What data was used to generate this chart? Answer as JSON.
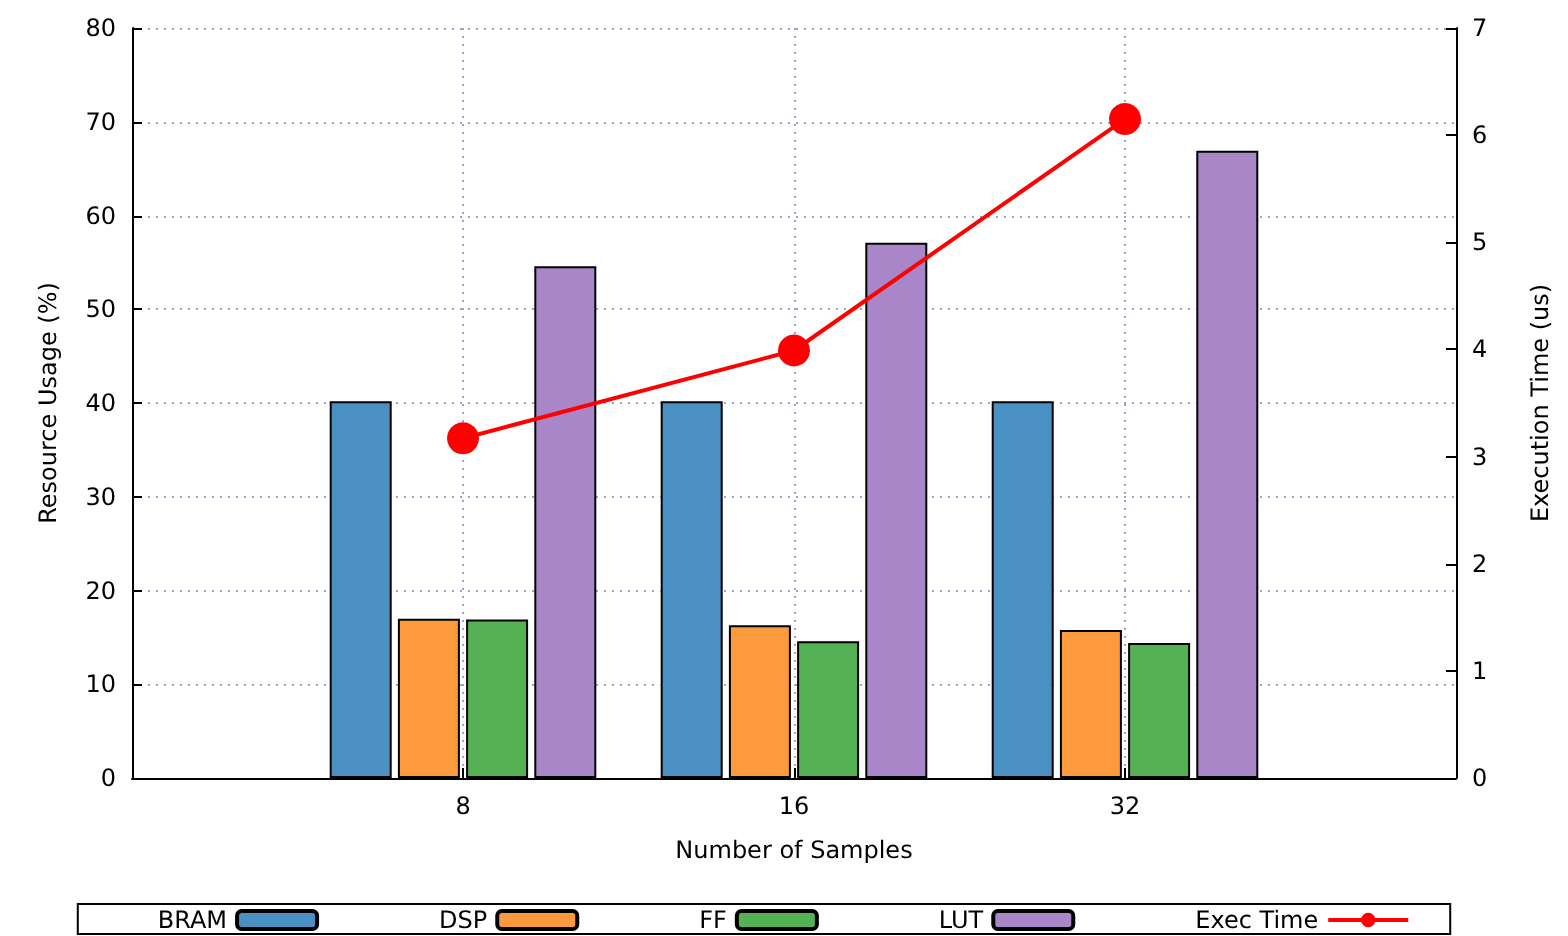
{
  "chart_data": {
    "type": "bar",
    "xlabel": "Number of Samples",
    "ylabel": "Resource Usage (%)",
    "y2label": "Execution Time (us)",
    "categories": [
      null,
      "8",
      "16",
      "32",
      null
    ],
    "series": [
      {
        "name": "BRAM",
        "color": "#4a90c2",
        "values": [
          null,
          40.2,
          40.2,
          40.2,
          null
        ]
      },
      {
        "name": "DSP",
        "color": "#fd9a3e",
        "values": [
          null,
          17.0,
          16.3,
          15.8,
          null
        ]
      },
      {
        "name": "FF",
        "color": "#55b254",
        "values": [
          null,
          16.9,
          14.6,
          14.4,
          null
        ]
      },
      {
        "name": "LUT",
        "color": "#a886c8",
        "values": [
          null,
          54.6,
          57.1,
          66.9,
          null
        ]
      },
      {
        "name": "Exec Time",
        "type": "line",
        "axis": "y2",
        "color": "#ff0000",
        "marker": "circle",
        "values": [
          null,
          3.17,
          3.99,
          6.15,
          null
        ]
      }
    ],
    "ylim": [
      0,
      80
    ],
    "yticks": [
      0,
      10,
      20,
      30,
      40,
      50,
      60,
      70,
      80
    ],
    "y2lim": [
      0,
      7
    ],
    "y2ticks": [
      0,
      1,
      2,
      3,
      4,
      5,
      6,
      7
    ],
    "grid": true,
    "legend": "bottom"
  }
}
